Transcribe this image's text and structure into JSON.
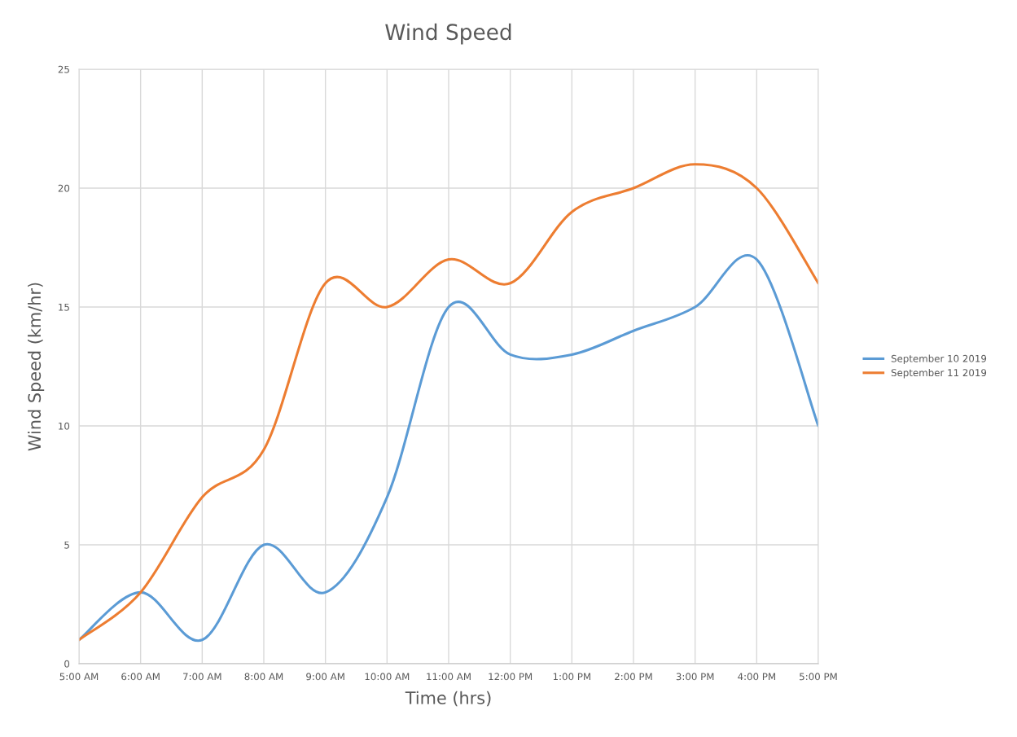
{
  "chart_data": {
    "type": "line",
    "title": "Wind Speed",
    "xlabel": "Time (hrs)",
    "ylabel": "Wind Speed (km/hr)",
    "categories": [
      "5:00 AM",
      "6:00 AM",
      "7:00 AM",
      "8:00 AM",
      "9:00 AM",
      "10:00 AM",
      "11:00 AM",
      "12:00 PM",
      "1:00 PM",
      "2:00 PM",
      "3:00 PM",
      "4:00 PM",
      "5:00 PM"
    ],
    "series": [
      {
        "name": "September 10 2019",
        "color": "#5b9bd5",
        "values": [
          1,
          3,
          1,
          5,
          3,
          7,
          15,
          13,
          13,
          14,
          15,
          17,
          10
        ]
      },
      {
        "name": "September 11 2019",
        "color": "#ed7d31",
        "values": [
          1,
          3,
          7,
          9,
          16,
          15,
          17,
          16,
          19,
          20,
          21,
          20,
          16
        ]
      }
    ],
    "ylim": [
      0,
      25
    ],
    "yticks": [
      0,
      5,
      10,
      15,
      20,
      25
    ],
    "grid": true,
    "legend": "right",
    "marker": "none",
    "line_style": "solid"
  }
}
